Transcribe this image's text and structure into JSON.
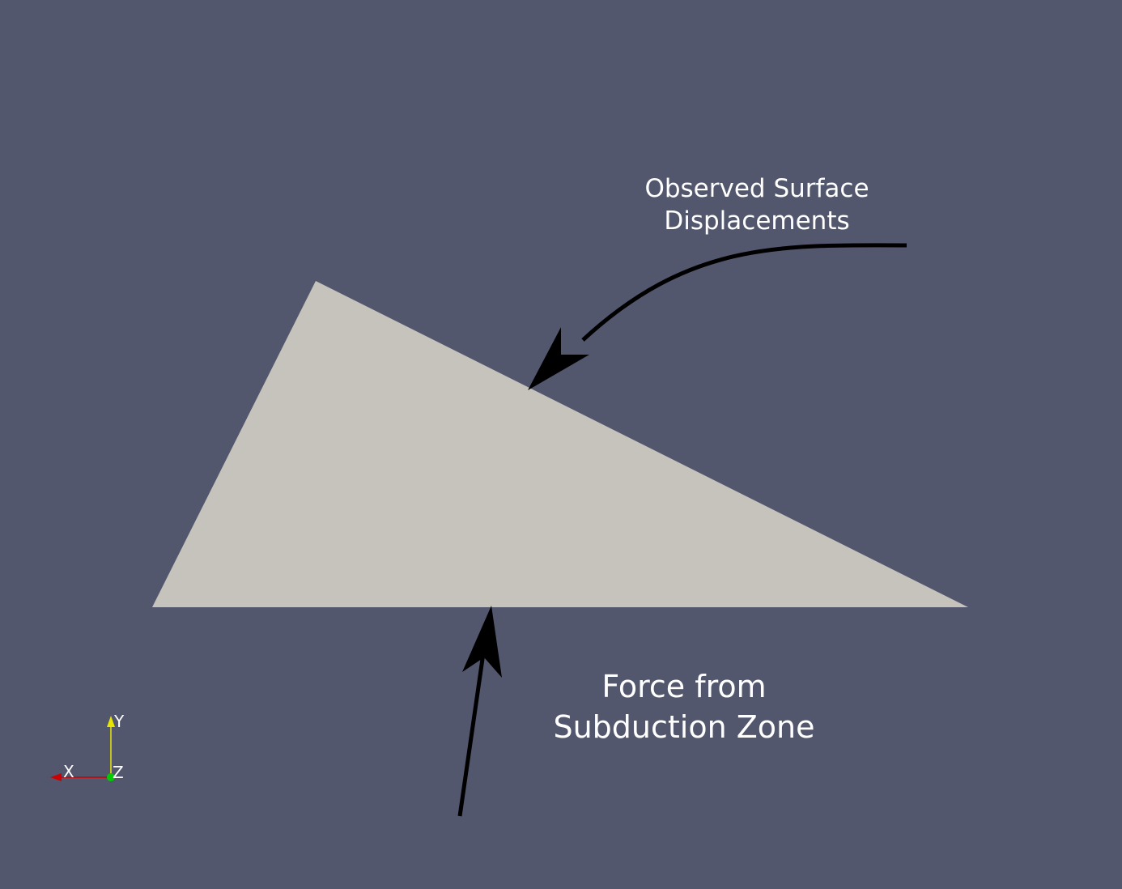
{
  "diagram": {
    "annotations": {
      "surface": {
        "line1": "Observed Surface",
        "line2": "Displacements"
      },
      "force": {
        "line1": "Force from",
        "line2": "Subduction Zone"
      }
    },
    "orientation_axes": {
      "x_label": "X",
      "y_label": "Y",
      "z_label": "Z"
    }
  },
  "colors": {
    "background": "#52576e",
    "wedge": "#c6c3bd",
    "arrow": "#000000",
    "x_axis": "#cc0000",
    "y_axis": "#e6e600",
    "z_axis": "#00cc00",
    "text": "#ffffff"
  }
}
